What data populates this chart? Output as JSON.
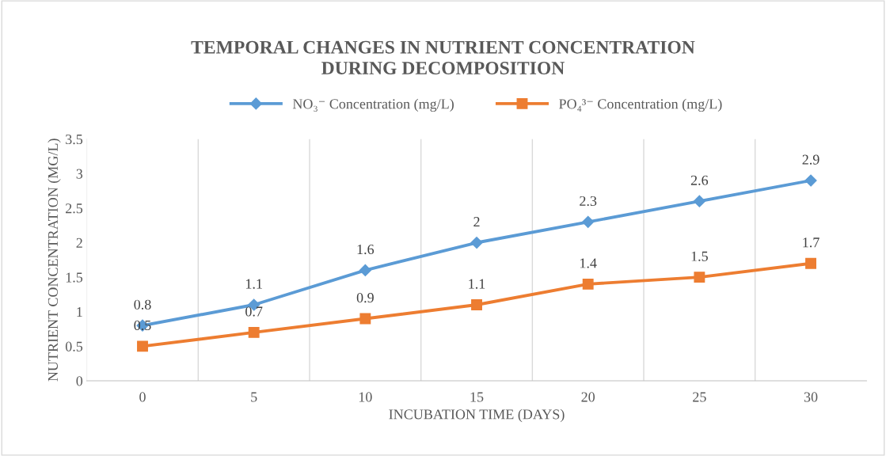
{
  "chart_data": {
    "type": "line",
    "title": "TEMPORAL CHANGES IN NUTRIENT CONCENTRATION\nDURING DECOMPOSITION",
    "xlabel": "INCUBATION TIME (DAYS)",
    "ylabel": "NUTRIENT CONCENTRATION (MG/L)",
    "categories": [
      "0",
      "5",
      "10",
      "15",
      "20",
      "25",
      "30"
    ],
    "series": [
      {
        "name": "NO₃⁻ Concentration (mg/L)",
        "color": "#5b9bd5",
        "marker": "diamond",
        "values": [
          0.8,
          1.1,
          1.6,
          2,
          2.3,
          2.6,
          2.9
        ]
      },
      {
        "name": "PO₄³⁻ Concentration (mg/L)",
        "color": "#ed7d31",
        "marker": "square",
        "values": [
          0.5,
          0.7,
          0.9,
          1.1,
          1.4,
          1.5,
          1.7
        ]
      }
    ],
    "ylim": [
      0,
      3.5
    ],
    "yticks": [
      0,
      0.5,
      1,
      1.5,
      2,
      2.5,
      3,
      3.5
    ],
    "grid": "x",
    "legend": "top",
    "data_labels": true,
    "line_style": "solid"
  }
}
